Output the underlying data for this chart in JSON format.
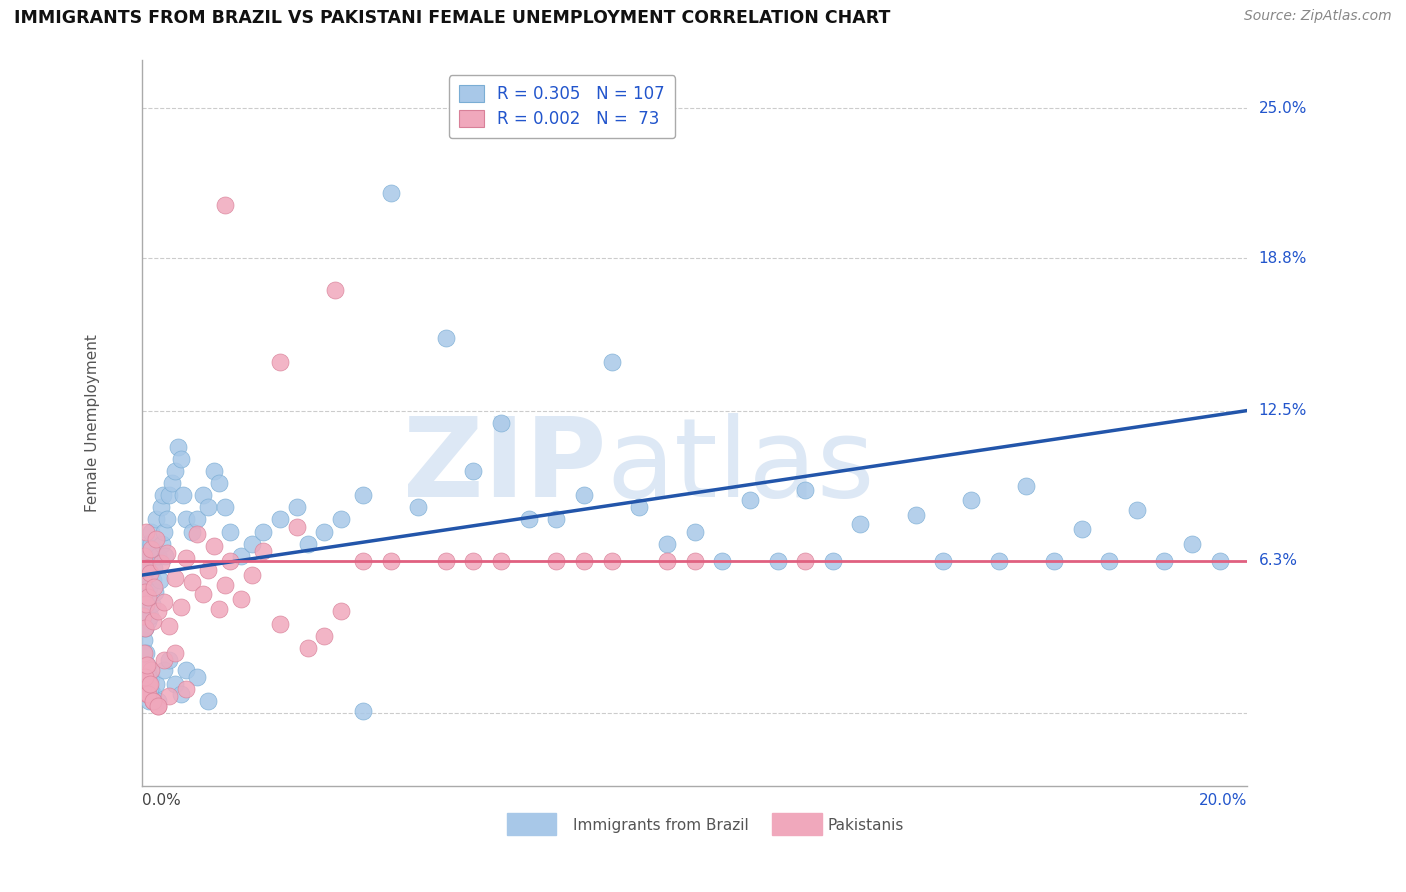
{
  "title": "IMMIGRANTS FROM BRAZIL VS PAKISTANI FEMALE UNEMPLOYMENT CORRELATION CHART",
  "source": "Source: ZipAtlas.com",
  "ylabel": "Female Unemployment",
  "y_ticks": [
    0.0,
    0.063,
    0.125,
    0.188,
    0.25
  ],
  "y_tick_labels": [
    "",
    "6.3%",
    "12.5%",
    "18.8%",
    "25.0%"
  ],
  "x_range": [
    0.0,
    0.2
  ],
  "y_range": [
    -0.03,
    0.27
  ],
  "brazil_R": 0.305,
  "brazil_N": 107,
  "pakistan_R": 0.002,
  "pakistan_N": 73,
  "brazil_color": "#a8c8e8",
  "brazil_edge_color": "#7aadd4",
  "brazil_line_color": "#2255aa",
  "pakistan_color": "#f0a8bc",
  "pakistan_edge_color": "#d88098",
  "pakistan_line_color": "#e06080",
  "watermark_zip": "ZIP",
  "watermark_atlas": "atlas",
  "watermark_color": "#dde8f5",
  "stat_color": "#2255cc",
  "background_color": "#ffffff",
  "grid_color": "#cccccc",
  "title_color": "#111111",
  "title_fontsize": 12.5,
  "source_fontsize": 10,
  "brazil_line_x": [
    0.0,
    0.2
  ],
  "brazil_line_y": [
    0.057,
    0.125
  ],
  "pakistan_line_x": [
    0.0,
    0.2
  ],
  "pakistan_line_y": [
    0.063,
    0.063
  ],
  "brazil_scatter_x": [
    0.0002,
    0.0003,
    0.0004,
    0.0005,
    0.0006,
    0.0007,
    0.0008,
    0.0009,
    0.001,
    0.0012,
    0.0013,
    0.0014,
    0.0015,
    0.0016,
    0.0017,
    0.0018,
    0.002,
    0.0022,
    0.0024,
    0.0026,
    0.003,
    0.0032,
    0.0034,
    0.0036,
    0.0038,
    0.004,
    0.0042,
    0.0045,
    0.005,
    0.0055,
    0.006,
    0.0065,
    0.007,
    0.0075,
    0.008,
    0.009,
    0.01,
    0.011,
    0.012,
    0.013,
    0.014,
    0.015,
    0.016,
    0.018,
    0.02,
    0.022,
    0.025,
    0.028,
    0.03,
    0.033,
    0.036,
    0.0003,
    0.0005,
    0.0007,
    0.001,
    0.0013,
    0.0016,
    0.002,
    0.0025,
    0.003,
    0.004,
    0.005,
    0.006,
    0.007,
    0.008,
    0.01,
    0.012,
    0.0002,
    0.0004,
    0.0006,
    0.0008,
    0.001,
    0.0012,
    0.0015,
    0.002,
    0.04,
    0.05,
    0.06,
    0.07,
    0.08,
    0.09,
    0.1,
    0.11,
    0.12,
    0.13,
    0.14,
    0.15,
    0.16,
    0.17,
    0.18,
    0.19,
    0.055,
    0.075,
    0.085,
    0.095,
    0.105,
    0.115,
    0.125,
    0.145,
    0.165,
    0.045,
    0.065,
    0.155,
    0.175,
    0.185,
    0.195,
    0.04
  ],
  "brazil_scatter_y": [
    0.055,
    0.04,
    0.06,
    0.05,
    0.035,
    0.065,
    0.045,
    0.07,
    0.06,
    0.038,
    0.052,
    0.04,
    0.065,
    0.07,
    0.075,
    0.045,
    0.055,
    0.06,
    0.05,
    0.08,
    0.065,
    0.055,
    0.085,
    0.07,
    0.09,
    0.075,
    0.065,
    0.08,
    0.09,
    0.095,
    0.1,
    0.11,
    0.105,
    0.09,
    0.08,
    0.075,
    0.08,
    0.09,
    0.085,
    0.1,
    0.095,
    0.085,
    0.075,
    0.065,
    0.07,
    0.075,
    0.08,
    0.085,
    0.07,
    0.075,
    0.08,
    0.025,
    0.015,
    0.02,
    0.01,
    0.005,
    0.015,
    0.008,
    0.012,
    0.005,
    0.018,
    0.022,
    0.012,
    0.008,
    0.018,
    0.015,
    0.005,
    0.04,
    0.03,
    0.035,
    0.025,
    0.02,
    0.015,
    0.01,
    0.005,
    0.09,
    0.085,
    0.1,
    0.08,
    0.09,
    0.085,
    0.075,
    0.088,
    0.092,
    0.078,
    0.082,
    0.088,
    0.094,
    0.076,
    0.084,
    0.07,
    0.155,
    0.08,
    0.145,
    0.07,
    0.063,
    0.063,
    0.063,
    0.063,
    0.063,
    0.215,
    0.12,
    0.063,
    0.063,
    0.063,
    0.063,
    0.001
  ],
  "pakistan_scatter_x": [
    0.0002,
    0.0003,
    0.0004,
    0.0005,
    0.0006,
    0.0007,
    0.0008,
    0.001,
    0.0012,
    0.0014,
    0.0016,
    0.002,
    0.0022,
    0.0025,
    0.003,
    0.0035,
    0.004,
    0.0045,
    0.005,
    0.006,
    0.007,
    0.008,
    0.009,
    0.01,
    0.011,
    0.012,
    0.013,
    0.014,
    0.015,
    0.016,
    0.018,
    0.02,
    0.022,
    0.025,
    0.028,
    0.03,
    0.033,
    0.036,
    0.0003,
    0.0005,
    0.0008,
    0.001,
    0.0013,
    0.0016,
    0.002,
    0.003,
    0.004,
    0.005,
    0.006,
    0.008,
    0.0004,
    0.0006,
    0.0009,
    0.0012,
    0.0015,
    0.002,
    0.003,
    0.04,
    0.06,
    0.08,
    0.1,
    0.12,
    0.025,
    0.035,
    0.015,
    0.045,
    0.055,
    0.065,
    0.075,
    0.085,
    0.095
  ],
  "pakistan_scatter_y": [
    0.055,
    0.04,
    0.065,
    0.05,
    0.035,
    0.075,
    0.045,
    0.06,
    0.048,
    0.058,
    0.068,
    0.038,
    0.052,
    0.072,
    0.042,
    0.062,
    0.046,
    0.066,
    0.036,
    0.056,
    0.044,
    0.064,
    0.054,
    0.074,
    0.049,
    0.059,
    0.069,
    0.043,
    0.053,
    0.063,
    0.047,
    0.057,
    0.067,
    0.037,
    0.077,
    0.027,
    0.032,
    0.042,
    0.01,
    0.015,
    0.02,
    0.008,
    0.012,
    0.018,
    0.005,
    0.003,
    0.022,
    0.007,
    0.025,
    0.01,
    0.025,
    0.015,
    0.02,
    0.008,
    0.012,
    0.005,
    0.003,
    0.063,
    0.063,
    0.063,
    0.063,
    0.063,
    0.145,
    0.175,
    0.21,
    0.063,
    0.063,
    0.063,
    0.063,
    0.063,
    0.063
  ]
}
